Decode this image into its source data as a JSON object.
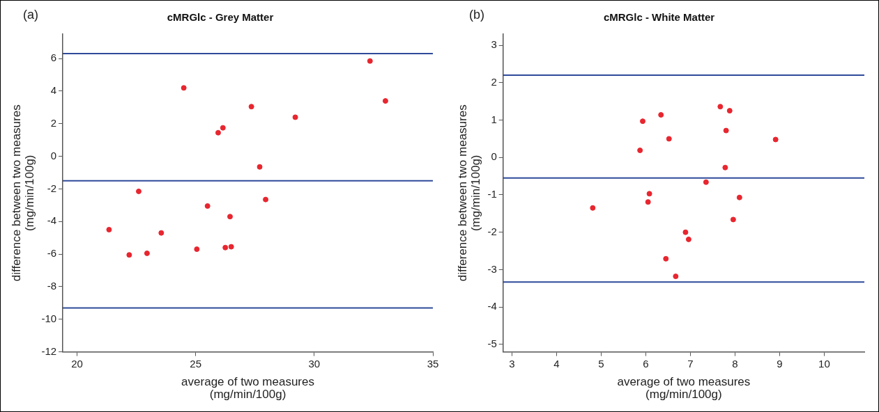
{
  "chart_data": [
    {
      "type": "scatter",
      "title": "cMRGlc - Grey Matter",
      "xlabel": "average of two measures\n(mg/min/100g)",
      "ylabel": "difference between two measures\n(mg/min/100g)",
      "annotations": [
        "(a)"
      ],
      "marker": "circle",
      "grid": false,
      "legend": false,
      "color": "#e8262f",
      "x": [
        21.35,
        22.2,
        22.6,
        22.95,
        23.55,
        24.5,
        25.05,
        25.5,
        25.95,
        26.15,
        26.25,
        26.45,
        26.5,
        27.35,
        27.7,
        27.95,
        29.2,
        32.35,
        33.0
      ],
      "values": [
        -4.5,
        -6.05,
        -2.15,
        -5.95,
        -4.7,
        4.2,
        -5.7,
        -3.05,
        1.45,
        1.75,
        -5.6,
        -3.7,
        -5.55,
        3.05,
        -0.65,
        -2.65,
        2.4,
        5.85,
        3.4
      ],
      "xlim": [
        19.4,
        35
      ],
      "ylim": [
        -12,
        7.5
      ],
      "xticks": [
        20,
        25,
        30,
        35
      ],
      "yticks": [
        -12,
        -10,
        -8,
        -6,
        -4,
        -2,
        0,
        2,
        4,
        6
      ],
      "ref_lines": [
        {
          "axis": "y",
          "value": 6.3,
          "color": "#2e4a9a"
        },
        {
          "axis": "y",
          "value": -1.5,
          "color": "#2e4a9a"
        },
        {
          "axis": "y",
          "value": -9.3,
          "color": "#2e4a9a"
        }
      ]
    },
    {
      "type": "scatter",
      "title": "cMRGlc - White Matter",
      "xlabel": "average of two measures\n(mg/min/100g)",
      "ylabel": "difference between two measures\n(mg/min/100g)",
      "annotations": [
        "(b)"
      ],
      "marker": "circle",
      "grid": false,
      "legend": false,
      "color": "#e8262f",
      "x": [
        5.93,
        5.87,
        6.34,
        6.08,
        6.05,
        4.81,
        6.52,
        6.45,
        6.67,
        6.89,
        6.96,
        7.35,
        7.67,
        7.88,
        7.8,
        7.78,
        8.1,
        7.96,
        8.91
      ],
      "values": [
        0.97,
        0.19,
        1.14,
        -0.97,
        -1.19,
        -1.35,
        0.5,
        -2.71,
        -3.18,
        -2.0,
        -2.19,
        -0.66,
        1.36,
        1.25,
        0.72,
        -0.27,
        -1.07,
        -1.66,
        0.48
      ],
      "xlim": [
        2.8,
        10.9
      ],
      "ylim": [
        -5.2,
        3.3
      ],
      "xticks": [
        3,
        4,
        5,
        6,
        7,
        8,
        9,
        10
      ],
      "yticks": [
        -5,
        -4,
        -3,
        -2,
        -1,
        0,
        1,
        2,
        3
      ],
      "ref_lines": [
        {
          "axis": "y",
          "value": 2.2,
          "color": "#2e4a9a"
        },
        {
          "axis": "y",
          "value": -0.55,
          "color": "#2e4a9a"
        },
        {
          "axis": "y",
          "value": -3.33,
          "color": "#2e4a9a"
        }
      ]
    }
  ]
}
